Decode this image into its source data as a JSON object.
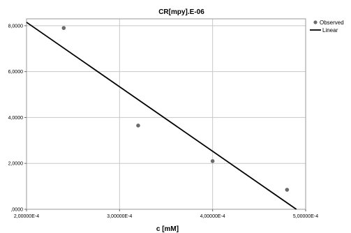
{
  "chart_data": {
    "type": "scatter",
    "title": "CR[mpy].E-06",
    "xlabel": "c [mM]",
    "ylabel": "",
    "xlim": [
      0.0002,
      0.0005
    ],
    "ylim": [
      0,
      8.3
    ],
    "x_ticks": [
      {
        "value": 0.0002,
        "label": "2,00000E-4"
      },
      {
        "value": 0.0003,
        "label": "3,00000E-4"
      },
      {
        "value": 0.0004,
        "label": "4,00000E-4"
      },
      {
        "value": 0.0005,
        "label": "5,00000E-4"
      }
    ],
    "y_ticks": [
      {
        "value": 0,
        "label": ",0000"
      },
      {
        "value": 2,
        "label": "2,0000"
      },
      {
        "value": 4,
        "label": "4,0000"
      },
      {
        "value": 6,
        "label": "6,0000"
      },
      {
        "value": 8,
        "label": "8,0000"
      }
    ],
    "grid": true,
    "legend_position": "top-right",
    "series": [
      {
        "name": "Observed",
        "kind": "points",
        "color": "#6b6b6b",
        "points": [
          {
            "x": 0.00024,
            "y": 7.9
          },
          {
            "x": 0.00032,
            "y": 3.65
          },
          {
            "x": 0.0004,
            "y": 2.1
          },
          {
            "x": 0.00048,
            "y": 0.85
          }
        ]
      },
      {
        "name": "Linear",
        "kind": "line",
        "color": "#000000",
        "points": [
          {
            "x": 0.0002,
            "y": 8.15
          },
          {
            "x": 0.00049,
            "y": 0
          }
        ]
      }
    ]
  }
}
